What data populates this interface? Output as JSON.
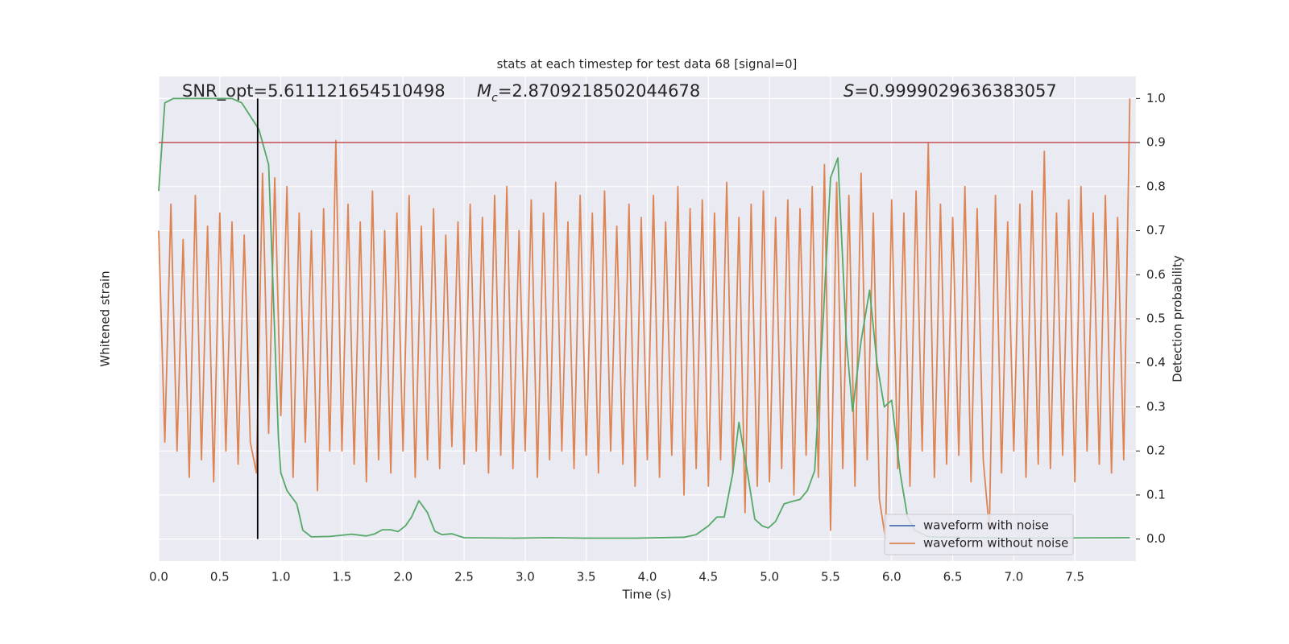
{
  "chart_data": {
    "type": "line",
    "title": "stats at each timestep for test data 68 [signal=0]",
    "xlabel": "Time (s)",
    "ylabel": "Whitened strain",
    "y2label": "Detection probability",
    "annotations": [
      {
        "text": "SNR_opt=5.611121654510498"
      },
      {
        "symbol": "M",
        "subscript": "c",
        "text": "=2.8709218502044678"
      },
      {
        "symbol": "S",
        "text": "=0.9999029636383057"
      }
    ],
    "xlim": [
      0,
      8
    ],
    "xticks": [
      {
        "value": 0,
        "label": "0.0"
      },
      0.5,
      {
        "value": 1,
        "label": "1.0"
      },
      1.5,
      {
        "value": 2,
        "label": "2.0"
      },
      2.5,
      {
        "value": 3,
        "label": "3.0"
      },
      3.5,
      {
        "value": 4,
        "label": "4.0"
      },
      4.5,
      {
        "value": 5,
        "label": "5.0"
      },
      5.5,
      {
        "value": 6,
        "label": "6.0"
      },
      6.5,
      {
        "value": 7,
        "label": "7.0"
      },
      7.5
    ],
    "y2lim": [
      -0.05,
      1.05
    ],
    "y2ticks": [
      {
        "value": 0,
        "label": "0.0"
      },
      0.1,
      0.2,
      0.3,
      0.4,
      0.5,
      0.6,
      0.7,
      0.8,
      0.9,
      {
        "value": 1,
        "label": "1.0"
      }
    ],
    "grid": true,
    "legend": "lower right",
    "threshold": {
      "value": 0.9,
      "color": "#c44e52"
    },
    "marker_line": {
      "x": 0.81,
      "ymin": 0,
      "ymax": 1,
      "color": "#000000"
    },
    "series": [
      {
        "name": "waveform with noise",
        "color": "#4c72b0"
      },
      {
        "name": "waveform without noise",
        "color": "#dd8452",
        "axis": "y2",
        "x": [
          0,
          0.05,
          0.1,
          0.15,
          0.2,
          0.25,
          0.3,
          0.35,
          0.4,
          0.45,
          0.5,
          0.55,
          0.6,
          0.65,
          0.7,
          0.75,
          0.8,
          0.85,
          0.9,
          0.95,
          1,
          1.05,
          1.1,
          1.15,
          1.2,
          1.25,
          1.3,
          1.35,
          1.4,
          1.45,
          1.5,
          1.55,
          1.6,
          1.65,
          1.7,
          1.75,
          1.8,
          1.85,
          1.9,
          1.95,
          2,
          2.05,
          2.1,
          2.15,
          2.2,
          2.25,
          2.3,
          2.35,
          2.4,
          2.45,
          2.5,
          2.55,
          2.6,
          2.65,
          2.7,
          2.75,
          2.8,
          2.85,
          2.9,
          2.95,
          3,
          3.05,
          3.1,
          3.15,
          3.2,
          3.25,
          3.3,
          3.35,
          3.4,
          3.45,
          3.5,
          3.55,
          3.6,
          3.65,
          3.7,
          3.75,
          3.8,
          3.85,
          3.9,
          3.95,
          4,
          4.05,
          4.1,
          4.15,
          4.2,
          4.25,
          4.3,
          4.35,
          4.4,
          4.45,
          4.5,
          4.55,
          4.6,
          4.65,
          4.7,
          4.75,
          4.8,
          4.85,
          4.9,
          4.95,
          5,
          5.05,
          5.1,
          5.15,
          5.2,
          5.25,
          5.3,
          5.35,
          5.4,
          5.45,
          5.5,
          5.55,
          5.6,
          5.65,
          5.7,
          5.75,
          5.8,
          5.85,
          5.9,
          5.95,
          6,
          6.05,
          6.1,
          6.15,
          6.2,
          6.25,
          6.3,
          6.35,
          6.4,
          6.45,
          6.5,
          6.55,
          6.6,
          6.65,
          6.7,
          6.75,
          6.8,
          6.85,
          6.9,
          6.95,
          7,
          7.05,
          7.1,
          7.15,
          7.2,
          7.25,
          7.3,
          7.35,
          7.4,
          7.45,
          7.5,
          7.55,
          7.6,
          7.65,
          7.7,
          7.75,
          7.8,
          7.85,
          7.9,
          7.95
        ],
        "values": [
          0.7,
          0.22,
          0.76,
          0.2,
          0.68,
          0.14,
          0.78,
          0.18,
          0.71,
          0.13,
          0.74,
          0.2,
          0.72,
          0.17,
          0.69,
          0.22,
          0.15,
          0.83,
          0.24,
          0.82,
          0.28,
          0.8,
          0.14,
          0.74,
          0.22,
          0.7,
          0.11,
          0.75,
          0.2,
          0.905,
          0.2,
          0.76,
          0.17,
          0.72,
          0.13,
          0.79,
          0.18,
          0.7,
          0.15,
          0.74,
          0.2,
          0.78,
          0.14,
          0.71,
          0.18,
          0.75,
          0.16,
          0.69,
          0.21,
          0.72,
          0.17,
          0.76,
          0.2,
          0.73,
          0.15,
          0.78,
          0.19,
          0.8,
          0.16,
          0.7,
          0.2,
          0.77,
          0.14,
          0.74,
          0.18,
          0.81,
          0.2,
          0.72,
          0.16,
          0.78,
          0.19,
          0.74,
          0.15,
          0.79,
          0.2,
          0.71,
          0.17,
          0.76,
          0.12,
          0.73,
          0.18,
          0.78,
          0.14,
          0.72,
          0.19,
          0.8,
          0.1,
          0.75,
          0.16,
          0.77,
          0.12,
          0.74,
          0.18,
          0.81,
          0.15,
          0.73,
          0.06,
          0.76,
          0.12,
          0.79,
          0.13,
          0.73,
          0.16,
          0.77,
          0.1,
          0.75,
          0.19,
          0.8,
          0.14,
          0.85,
          0.02,
          0.81,
          0.16,
          0.78,
          0.12,
          0.83,
          0.18,
          0.74,
          0.09,
          0.0,
          0.77,
          0.16,
          0.74,
          0.12,
          0.79,
          0.2,
          0.9,
          0.14,
          0.76,
          0.17,
          0.73,
          0.19,
          0.8,
          0.13,
          0.75,
          0.18,
          0.02,
          0.78,
          0.15,
          0.72,
          0.2,
          0.76,
          0.14,
          0.79,
          0.17,
          0.88,
          0.16,
          0.74,
          0.19,
          0.77,
          0.13,
          0.8,
          0.2,
          0.74,
          0.17,
          0.78,
          0.15,
          0.73,
          0.18,
          1.0
        ]
      },
      {
        "color": "#55a868",
        "axis": "y2",
        "x": [
          0,
          0.05,
          0.12,
          0.6,
          0.68,
          0.75,
          0.82,
          0.9,
          0.98,
          1.0,
          1.05,
          1.13,
          1.18,
          1.25,
          1.4,
          1.58,
          1.7,
          1.77,
          1.83,
          1.9,
          1.96,
          2.02,
          2.07,
          2.13,
          2.2,
          2.26,
          2.32,
          2.4,
          2.5,
          2.9,
          3.2,
          3.5,
          3.9,
          4.3,
          4.4,
          4.5,
          4.57,
          4.63,
          4.7,
          4.75,
          4.82,
          4.88,
          4.94,
          4.99,
          5.05,
          5.12,
          5.18,
          5.25,
          5.31,
          5.37,
          5.44,
          5.5,
          5.56,
          5.63,
          5.68,
          5.75,
          5.82,
          5.88,
          5.94,
          6.0,
          6.07,
          6.13,
          6.19,
          6.3,
          7.0,
          7.95
        ],
        "values": [
          0.79,
          0.99,
          1.0,
          1.0,
          0.99,
          0.96,
          0.93,
          0.85,
          0.23,
          0.15,
          0.11,
          0.08,
          0.02,
          0.005,
          0.006,
          0.011,
          0.007,
          0.012,
          0.021,
          0.021,
          0.017,
          0.03,
          0.05,
          0.087,
          0.06,
          0.018,
          0.01,
          0.012,
          0.003,
          0.002,
          0.003,
          0.002,
          0.002,
          0.004,
          0.01,
          0.03,
          0.05,
          0.05,
          0.15,
          0.265,
          0.15,
          0.045,
          0.03,
          0.025,
          0.04,
          0.08,
          0.085,
          0.09,
          0.11,
          0.155,
          0.5,
          0.82,
          0.865,
          0.45,
          0.29,
          0.45,
          0.565,
          0.4,
          0.3,
          0.315,
          0.15,
          0.05,
          0.02,
          0.005,
          0.002,
          0.003
        ]
      }
    ]
  }
}
